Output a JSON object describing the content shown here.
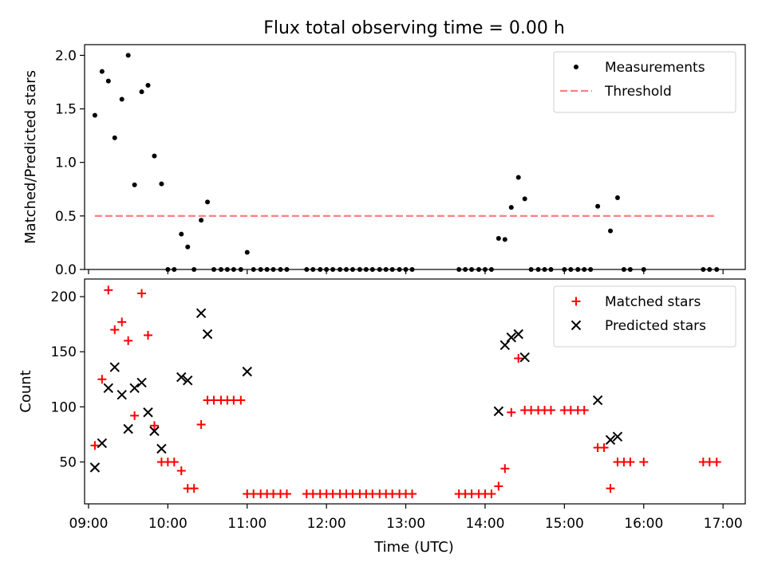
{
  "chart_data": {
    "title": "Flux total observing time = 0.00 h",
    "xlabel": "Time (UTC)",
    "xlim": [
      8.95,
      17.28
    ],
    "xticks": [
      {
        "v": 9,
        "label": "09:00"
      },
      {
        "v": 10,
        "label": "10:00"
      },
      {
        "v": 11,
        "label": "11:00"
      },
      {
        "v": 12,
        "label": "12:00"
      },
      {
        "v": 13,
        "label": "13:00"
      },
      {
        "v": 14,
        "label": "14:00"
      },
      {
        "v": 15,
        "label": "15:00"
      },
      {
        "v": 16,
        "label": "16:00"
      },
      {
        "v": 17,
        "label": "17:00"
      }
    ],
    "panels": [
      {
        "type": "scatter",
        "ylabel": "Matched/Predicted stars",
        "ylim": [
          0,
          2.1
        ],
        "yticks": [
          {
            "v": 0,
            "label": "0.0"
          },
          {
            "v": 0.5,
            "label": "0.5"
          },
          {
            "v": 1.0,
            "label": "1.0"
          },
          {
            "v": 1.5,
            "label": "1.5"
          },
          {
            "v": 2.0,
            "label": "2.0"
          }
        ],
        "legend_position": "top-right",
        "series": [
          {
            "name": "Measurements",
            "marker": "dot",
            "color": "#000000",
            "points": [
              [
                9.08,
                1.44
              ],
              [
                9.17,
                1.85
              ],
              [
                9.25,
                1.76
              ],
              [
                9.33,
                1.23
              ],
              [
                9.42,
                1.59
              ],
              [
                9.5,
                2.0
              ],
              [
                9.58,
                0.79
              ],
              [
                9.67,
                1.66
              ],
              [
                9.75,
                1.72
              ],
              [
                9.83,
                1.06
              ],
              [
                9.92,
                0.8
              ],
              [
                10.0,
                0.0
              ],
              [
                10.08,
                0.0
              ],
              [
                10.17,
                0.33
              ],
              [
                10.25,
                0.21
              ],
              [
                10.33,
                0.0
              ],
              [
                10.42,
                0.46
              ],
              [
                10.5,
                0.63
              ],
              [
                10.58,
                0.0
              ],
              [
                10.67,
                0.0
              ],
              [
                10.75,
                0.0
              ],
              [
                10.83,
                0.0
              ],
              [
                10.92,
                0.0
              ],
              [
                11.0,
                0.16
              ],
              [
                11.08,
                0.0
              ],
              [
                11.17,
                0.0
              ],
              [
                11.25,
                0.0
              ],
              [
                11.33,
                0.0
              ],
              [
                11.42,
                0.0
              ],
              [
                11.5,
                0.0
              ],
              [
                11.75,
                0.0
              ],
              [
                11.83,
                0.0
              ],
              [
                11.92,
                0.0
              ],
              [
                12.0,
                0.0
              ],
              [
                12.08,
                0.0
              ],
              [
                12.17,
                0.0
              ],
              [
                12.25,
                0.0
              ],
              [
                12.33,
                0.0
              ],
              [
                12.42,
                0.0
              ],
              [
                12.5,
                0.0
              ],
              [
                12.58,
                0.0
              ],
              [
                12.67,
                0.0
              ],
              [
                12.75,
                0.0
              ],
              [
                12.83,
                0.0
              ],
              [
                12.92,
                0.0
              ],
              [
                13.0,
                0.0
              ],
              [
                13.08,
                0.0
              ],
              [
                13.67,
                0.0
              ],
              [
                13.75,
                0.0
              ],
              [
                13.83,
                0.0
              ],
              [
                13.92,
                0.0
              ],
              [
                14.0,
                0.0
              ],
              [
                14.08,
                0.0
              ],
              [
                14.17,
                0.29
              ],
              [
                14.25,
                0.28
              ],
              [
                14.33,
                0.58
              ],
              [
                14.42,
                0.86
              ],
              [
                14.5,
                0.66
              ],
              [
                14.58,
                0.0
              ],
              [
                14.67,
                0.0
              ],
              [
                14.75,
                0.0
              ],
              [
                14.83,
                0.0
              ],
              [
                15.0,
                0.0
              ],
              [
                15.08,
                0.0
              ],
              [
                15.17,
                0.0
              ],
              [
                15.25,
                0.0
              ],
              [
                15.33,
                0.0
              ],
              [
                15.42,
                0.59
              ],
              [
                15.58,
                0.36
              ],
              [
                15.67,
                0.67
              ],
              [
                15.75,
                0.0
              ],
              [
                15.83,
                0.0
              ],
              [
                16.0,
                0.0
              ],
              [
                16.75,
                0.0
              ],
              [
                16.83,
                0.0
              ],
              [
                16.92,
                0.0
              ]
            ]
          },
          {
            "name": "Threshold",
            "marker": "dashed-line",
            "color": "#ff7f7f",
            "points": [
              [
                9.08,
                0.5
              ],
              [
                16.92,
                0.5
              ]
            ]
          }
        ]
      },
      {
        "type": "scatter",
        "ylabel": "Count",
        "ylim": [
          12,
          216
        ],
        "yticks": [
          {
            "v": 50,
            "label": "50"
          },
          {
            "v": 100,
            "label": "100"
          },
          {
            "v": 150,
            "label": "150"
          },
          {
            "v": 200,
            "label": "200"
          }
        ],
        "legend_position": "top-right",
        "series": [
          {
            "name": "Matched stars",
            "marker": "plus",
            "color": "#ff0000",
            "points": [
              [
                9.08,
                65
              ],
              [
                9.17,
                125
              ],
              [
                9.25,
                206
              ],
              [
                9.33,
                170
              ],
              [
                9.42,
                177
              ],
              [
                9.5,
                160
              ],
              [
                9.58,
                92
              ],
              [
                9.67,
                203
              ],
              [
                9.75,
                165
              ],
              [
                9.83,
                83
              ],
              [
                9.92,
                50
              ],
              [
                10.0,
                50
              ],
              [
                10.08,
                50
              ],
              [
                10.17,
                42
              ],
              [
                10.25,
                26
              ],
              [
                10.33,
                26
              ],
              [
                10.42,
                84
              ],
              [
                10.5,
                106
              ],
              [
                10.58,
                106
              ],
              [
                10.67,
                106
              ],
              [
                10.75,
                106
              ],
              [
                10.83,
                106
              ],
              [
                10.92,
                106
              ],
              [
                11.0,
                21
              ],
              [
                11.08,
                21
              ],
              [
                11.17,
                21
              ],
              [
                11.25,
                21
              ],
              [
                11.33,
                21
              ],
              [
                11.42,
                21
              ],
              [
                11.5,
                21
              ],
              [
                11.75,
                21
              ],
              [
                11.83,
                21
              ],
              [
                11.92,
                21
              ],
              [
                12.0,
                21
              ],
              [
                12.08,
                21
              ],
              [
                12.17,
                21
              ],
              [
                12.25,
                21
              ],
              [
                12.33,
                21
              ],
              [
                12.42,
                21
              ],
              [
                12.5,
                21
              ],
              [
                12.58,
                21
              ],
              [
                12.67,
                21
              ],
              [
                12.75,
                21
              ],
              [
                12.83,
                21
              ],
              [
                12.92,
                21
              ],
              [
                13.0,
                21
              ],
              [
                13.08,
                21
              ],
              [
                13.67,
                21
              ],
              [
                13.75,
                21
              ],
              [
                13.83,
                21
              ],
              [
                13.92,
                21
              ],
              [
                14.0,
                21
              ],
              [
                14.08,
                21
              ],
              [
                14.17,
                28
              ],
              [
                14.25,
                44
              ],
              [
                14.33,
                95
              ],
              [
                14.42,
                144
              ],
              [
                14.5,
                97
              ],
              [
                14.58,
                97
              ],
              [
                14.67,
                97
              ],
              [
                14.75,
                97
              ],
              [
                14.83,
                97
              ],
              [
                15.0,
                97
              ],
              [
                15.08,
                97
              ],
              [
                15.17,
                97
              ],
              [
                15.25,
                97
              ],
              [
                15.42,
                63
              ],
              [
                15.5,
                63
              ],
              [
                15.58,
                26
              ],
              [
                15.67,
                50
              ],
              [
                15.75,
                50
              ],
              [
                15.83,
                50
              ],
              [
                16.0,
                50
              ],
              [
                16.75,
                50
              ],
              [
                16.83,
                50
              ],
              [
                16.92,
                50
              ]
            ]
          },
          {
            "name": "Predicted stars",
            "marker": "x",
            "color": "#000000",
            "points": [
              [
                9.08,
                45
              ],
              [
                9.17,
                67
              ],
              [
                9.25,
                117
              ],
              [
                9.33,
                136
              ],
              [
                9.42,
                111
              ],
              [
                9.5,
                80
              ],
              [
                9.58,
                117
              ],
              [
                9.67,
                122
              ],
              [
                9.75,
                95
              ],
              [
                9.83,
                78
              ],
              [
                9.92,
                62
              ],
              [
                10.17,
                127
              ],
              [
                10.25,
                124
              ],
              [
                10.42,
                185
              ],
              [
                10.5,
                166
              ],
              [
                11.0,
                132
              ],
              [
                14.17,
                96
              ],
              [
                14.25,
                156
              ],
              [
                14.33,
                163
              ],
              [
                14.42,
                166
              ],
              [
                14.5,
                145
              ],
              [
                15.42,
                106
              ],
              [
                15.58,
                70
              ],
              [
                15.67,
                73
              ]
            ]
          }
        ]
      }
    ]
  }
}
